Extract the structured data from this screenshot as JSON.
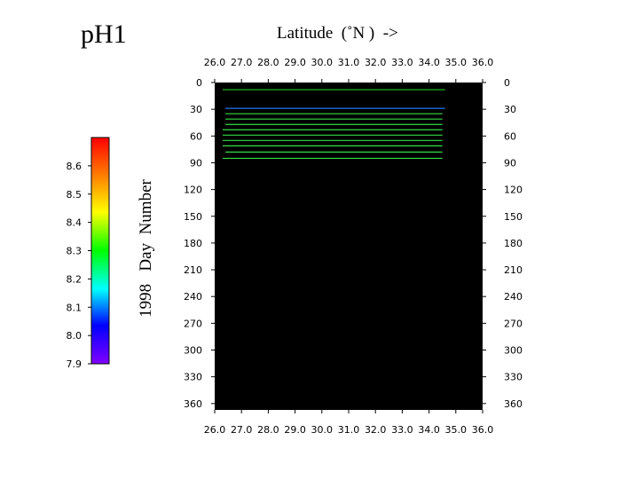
{
  "title": "pH1",
  "colorbar": {
    "ticks": [
      "8.6",
      "8.5",
      "8.4",
      "8.3",
      "8.2",
      "8.1",
      "8.0",
      "7.9"
    ],
    "tick_values": [
      8.6,
      8.5,
      8.4,
      8.3,
      8.2,
      8.1,
      8.0,
      7.9
    ],
    "range": [
      7.9,
      8.7
    ],
    "colors": [
      "#ff0000",
      "#ff8000",
      "#ffff00",
      "#00ff00",
      "#00ffff",
      "#0000ff",
      "#8000ff"
    ]
  },
  "chart_data": {
    "type": "heatmap",
    "title": "pH1",
    "xlabel": "Latitude  (˚N )  ->",
    "ylabel": "1998   Day  Number",
    "xlim": [
      26.0,
      36.0
    ],
    "ylim": [
      0,
      365
    ],
    "x_ticks": [
      "26.0",
      "27.0",
      "28.0",
      "29.0",
      "30.0",
      "31.0",
      "32.0",
      "33.0",
      "34.0",
      "35.0",
      "36.0"
    ],
    "y_ticks": [
      "0",
      "30",
      "60",
      "90",
      "120",
      "150",
      "180",
      "210",
      "240",
      "270",
      "300",
      "330",
      "360"
    ],
    "background": "#000000",
    "segments": [
      {
        "day": 8,
        "x_start": 26.3,
        "x_end": 34.6,
        "color": "#22c722"
      },
      {
        "day": 29,
        "x_start": 26.4,
        "x_end": 34.6,
        "color": "#2277ee"
      },
      {
        "day": 35,
        "x_start": 26.4,
        "x_end": 34.5,
        "color": "#33dd44"
      },
      {
        "day": 41,
        "x_start": 26.4,
        "x_end": 34.5,
        "color": "#33dd44"
      },
      {
        "day": 47,
        "x_start": 26.4,
        "x_end": 34.5,
        "color": "#33dd44"
      },
      {
        "day": 53,
        "x_start": 26.3,
        "x_end": 34.5,
        "color": "#33dd44"
      },
      {
        "day": 59,
        "x_start": 26.3,
        "x_end": 34.5,
        "color": "#33dd44"
      },
      {
        "day": 65,
        "x_start": 26.3,
        "x_end": 34.5,
        "color": "#33dd44"
      },
      {
        "day": 71,
        "x_start": 26.3,
        "x_end": 34.5,
        "color": "#33dd44"
      },
      {
        "day": 78,
        "x_start": 26.4,
        "x_end": 34.5,
        "color": "#33dd44"
      },
      {
        "day": 85,
        "x_start": 26.3,
        "x_end": 34.5,
        "color": "#33dd44"
      }
    ]
  }
}
